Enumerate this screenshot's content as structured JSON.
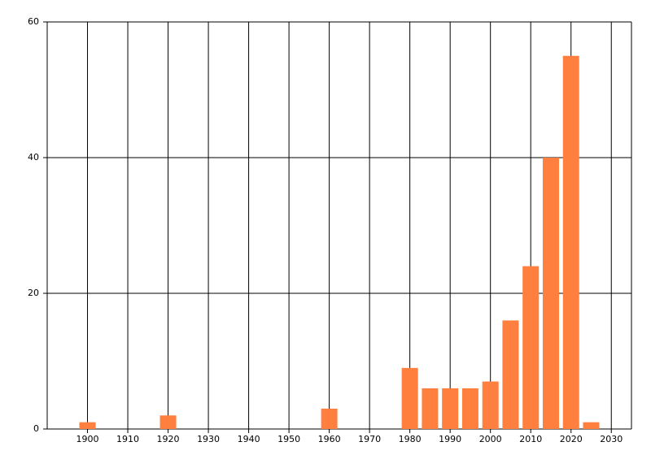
{
  "chart_data": {
    "type": "bar",
    "x": [
      1900,
      1920,
      1960,
      1980,
      1985,
      1990,
      1995,
      2000,
      2005,
      2010,
      2015,
      2020,
      2025
    ],
    "values": [
      1,
      2,
      3,
      9,
      6,
      6,
      6,
      7,
      16,
      24,
      40,
      55,
      1
    ],
    "color": "#ff7f3f",
    "xlim": [
      1890,
      2035
    ],
    "xticks": [
      1900,
      1910,
      1920,
      1930,
      1940,
      1950,
      1960,
      1970,
      1980,
      1990,
      2000,
      2010,
      2020,
      2030
    ],
    "ylim": [
      0,
      60
    ],
    "yticks": [
      0,
      20,
      40,
      60
    ],
    "grid": true
  }
}
